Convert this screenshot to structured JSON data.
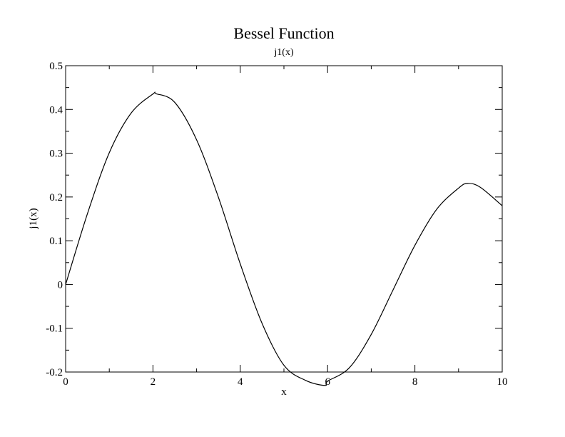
{
  "chart_data": {
    "type": "line",
    "title": "Bessel Function",
    "subtitle": "j1(x)",
    "xlabel": "x",
    "ylabel": "j1(x)",
    "xlim": [
      0,
      10
    ],
    "ylim": [
      -0.2,
      0.5
    ],
    "x_ticks": [
      0,
      2,
      4,
      6,
      8,
      10
    ],
    "x_tick_labels": [
      "0",
      "2",
      "4",
      "6",
      "8",
      "10"
    ],
    "y_ticks": [
      -0.2,
      -0.1,
      0,
      0.1,
      0.2,
      0.3,
      0.4,
      0.5
    ],
    "y_tick_labels": [
      "-0.2",
      "-0.1",
      "0",
      "0.1",
      "0.2",
      "0.3",
      "0.4",
      "0.5"
    ],
    "grid": false,
    "series": [
      {
        "color": "#000000",
        "x": [
          0,
          0.5,
          1,
          1.5,
          2,
          2.08,
          2.5,
          3,
          3.5,
          4,
          4.5,
          5,
          5.5,
          5.94,
          6,
          6.5,
          7,
          7.5,
          8,
          8.5,
          9,
          9.21,
          9.5,
          10
        ],
        "y": [
          0,
          0.162,
          0.3012,
          0.3917,
          0.4354,
          0.4357,
          0.4161,
          0.3305,
          0.1991,
          0.047,
          -0.089,
          -0.1845,
          -0.2193,
          -0.2306,
          -0.221,
          -0.1901,
          -0.114,
          -0.0123,
          0.0895,
          0.172,
          0.2203,
          0.231,
          0.222,
          0.18
        ]
      }
    ]
  }
}
